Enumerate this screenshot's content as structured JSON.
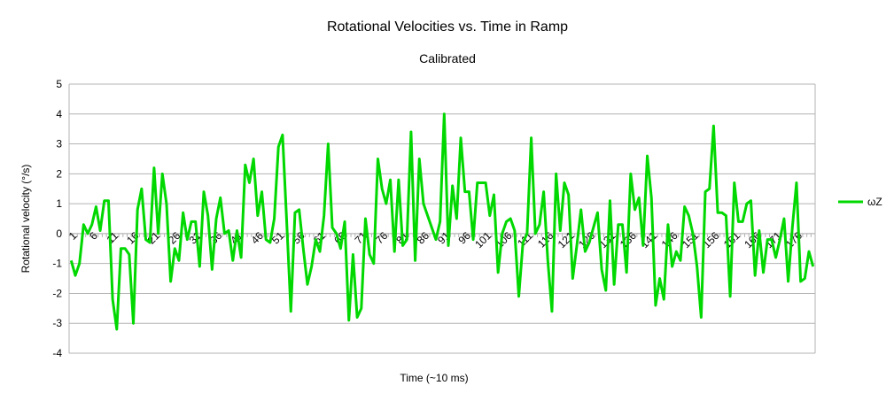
{
  "chart_data": {
    "type": "line",
    "title": "Rotational Velocities vs. Time in Ramp",
    "subtitle": "Calibrated",
    "xlabel": "Time (~10 ms)",
    "ylabel": "Rotational velocity (°/s)",
    "ylim": [
      -4,
      5
    ],
    "yticks": [
      -4,
      -3,
      -2,
      -1,
      0,
      1,
      2,
      3,
      4,
      5
    ],
    "grid": true,
    "legend_position": "right",
    "x_start": 1,
    "x_end": 181,
    "x_tick_step": 5,
    "series": [
      {
        "name": "ωZ",
        "color": "#00d800",
        "values": [
          -0.9,
          -1.4,
          -1.0,
          0.3,
          0.0,
          0.3,
          0.9,
          0.1,
          1.1,
          1.1,
          -2.2,
          -3.2,
          -0.5,
          -0.5,
          -0.7,
          -3.0,
          0.8,
          1.5,
          -0.2,
          -0.3,
          2.2,
          0.0,
          2.0,
          1.0,
          -1.6,
          -0.5,
          -0.9,
          0.7,
          -0.2,
          0.4,
          0.4,
          -1.1,
          1.4,
          0.6,
          -1.2,
          0.5,
          1.2,
          0.0,
          0.1,
          -0.9,
          0.1,
          -0.8,
          2.3,
          1.7,
          2.5,
          0.6,
          1.4,
          -0.2,
          -0.3,
          0.5,
          2.9,
          3.3,
          0.4,
          -2.6,
          0.7,
          0.8,
          -0.5,
          -1.7,
          -1.1,
          -0.2,
          -0.6,
          0.6,
          3.0,
          0.2,
          0.0,
          -0.5,
          0.4,
          -2.9,
          -0.7,
          -2.8,
          -2.5,
          0.5,
          -0.7,
          -1.0,
          2.5,
          1.5,
          1.0,
          1.8,
          -0.6,
          1.8,
          -0.4,
          -0.2,
          3.4,
          -0.9,
          2.5,
          1.0,
          0.6,
          0.2,
          -0.2,
          0.4,
          4.0,
          -0.4,
          1.6,
          0.5,
          3.2,
          1.4,
          1.4,
          -0.2,
          1.7,
          1.7,
          1.7,
          0.6,
          1.3,
          -1.3,
          0.0,
          0.4,
          0.5,
          0.1,
          -2.1,
          -0.3,
          0.0,
          3.2,
          0.0,
          0.3,
          1.4,
          -0.9,
          -2.6,
          2.0,
          0.1,
          1.7,
          1.3,
          -1.5,
          -0.4,
          0.8,
          -0.6,
          -0.3,
          0.2,
          0.7,
          -1.2,
          -1.9,
          1.1,
          -1.7,
          0.3,
          0.3,
          -1.3,
          2.0,
          0.8,
          1.2,
          -0.4,
          2.6,
          1.2,
          -2.4,
          -1.5,
          -2.2,
          0.3,
          -1.1,
          -0.6,
          -0.9,
          0.9,
          0.6,
          0.0,
          -1.1,
          -2.8,
          1.4,
          1.5,
          3.6,
          0.7,
          0.7,
          0.6,
          -2.1,
          1.7,
          0.4,
          0.4,
          1.0,
          1.1,
          -1.4,
          0.1,
          -1.3,
          -0.2,
          -0.2,
          -0.8,
          -0.2,
          0.5,
          -1.6,
          0.2,
          1.7,
          -1.6,
          -1.5,
          -0.6,
          -1.1
        ]
      }
    ]
  }
}
